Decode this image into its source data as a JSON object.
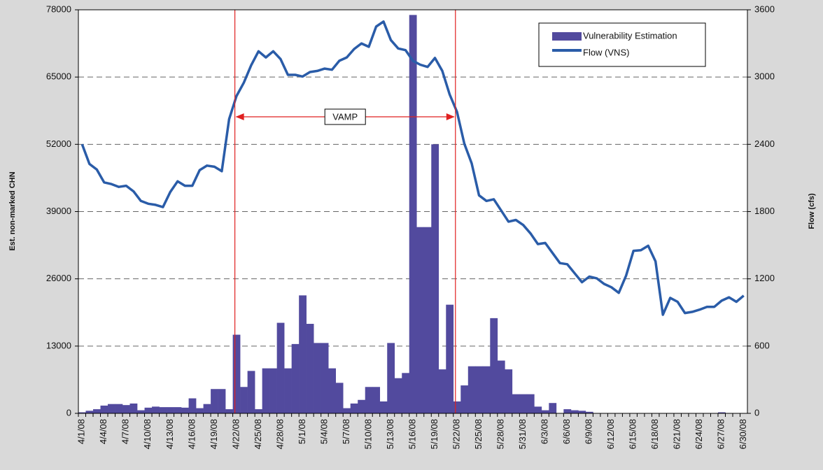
{
  "chart_data": {
    "type": "bar_line",
    "y_label": "Est. non-marked CHN",
    "y2_label": "Flow (cfs)",
    "categories": [
      "4/1/08",
      null,
      null,
      "4/4/08",
      null,
      null,
      "4/7/08",
      null,
      null,
      "4/10/08",
      null,
      null,
      "4/13/08",
      null,
      null,
      "4/16/08",
      null,
      null,
      "4/19/08",
      null,
      null,
      "4/22/08",
      null,
      null,
      "4/25/08",
      null,
      null,
      "4/28/08",
      null,
      null,
      "5/1/08",
      null,
      null,
      "5/4/08",
      null,
      null,
      "5/7/08",
      null,
      null,
      "5/10/08",
      null,
      null,
      "5/13/08",
      null,
      null,
      "5/16/08",
      null,
      null,
      "5/19/08",
      null,
      null,
      "5/22/08",
      null,
      null,
      "5/25/08",
      null,
      null,
      "5/28/08",
      null,
      null,
      "5/31/08",
      null,
      null,
      "6/3/08",
      null,
      null,
      "6/6/08",
      null,
      null,
      "6/9/08",
      null,
      null,
      "6/12/08",
      null,
      null,
      "6/15/08",
      null,
      null,
      "6/18/08",
      null,
      null,
      "6/21/08",
      null,
      null,
      "6/24/08",
      null,
      null,
      "6/27/08",
      null,
      null,
      "6/30/08"
    ],
    "series": [
      {
        "name": "Vulnerability Estimation",
        "color": "#524a9e",
        "axis": "y",
        "values": [
          200,
          500,
          800,
          1500,
          1800,
          1800,
          1600,
          1900,
          600,
          1100,
          1300,
          1200,
          1200,
          1200,
          1100,
          2900,
          1000,
          1800,
          4700,
          4700,
          800,
          15200,
          5100,
          8200,
          800,
          8700,
          8700,
          17500,
          8700,
          13400,
          22800,
          17300,
          13600,
          13600,
          8700,
          5900,
          1000,
          1900,
          2600,
          5100,
          5100,
          2300,
          13600,
          6800,
          7800,
          77000,
          36000,
          36000,
          52000,
          8500,
          21000,
          2300,
          5400,
          9100,
          9100,
          9100,
          18400,
          10200,
          8500,
          3700,
          3700,
          3700,
          1300,
          600,
          2000,
          0,
          800,
          600,
          500,
          300,
          0,
          0,
          0,
          0,
          0,
          0,
          0,
          0,
          0,
          0,
          0,
          0,
          0,
          0,
          0,
          0,
          0,
          200,
          0,
          0,
          0
        ]
      },
      {
        "name": "Flow (VNS)",
        "color": "#2a5ca8",
        "axis": "y2",
        "values": [
          2400,
          2225,
          2175,
          2060,
          2045,
          2020,
          2030,
          1980,
          1895,
          1870,
          1860,
          1840,
          1975,
          2070,
          2030,
          2030,
          2170,
          2210,
          2200,
          2160,
          2625,
          2830,
          2950,
          3105,
          3230,
          3175,
          3230,
          3160,
          3020,
          3020,
          3005,
          3045,
          3055,
          3075,
          3065,
          3145,
          3175,
          3250,
          3300,
          3270,
          3450,
          3495,
          3330,
          3255,
          3240,
          3145,
          3110,
          3090,
          3170,
          3055,
          2845,
          2690,
          2405,
          2230,
          1945,
          1895,
          1910,
          1810,
          1710,
          1725,
          1680,
          1605,
          1510,
          1520,
          1430,
          1340,
          1330,
          1250,
          1170,
          1220,
          1205,
          1155,
          1125,
          1075,
          1230,
          1450,
          1455,
          1495,
          1355,
          880,
          1030,
          995,
          895,
          905,
          925,
          950,
          950,
          1005,
          1035,
          995,
          1050
        ]
      }
    ],
    "ylim": [
      0,
      78000
    ],
    "yticks": [
      0,
      13000,
      26000,
      39000,
      52000,
      65000,
      78000
    ],
    "y2lim": [
      0,
      3600
    ],
    "y2ticks": [
      0,
      600,
      1200,
      1800,
      2400,
      3000,
      3600
    ],
    "grid": true,
    "legend": "upper right",
    "annotation": {
      "text": "VAMP",
      "x_start": "4/22/08",
      "x_end": "5/22/08",
      "color": "#e02020"
    }
  }
}
